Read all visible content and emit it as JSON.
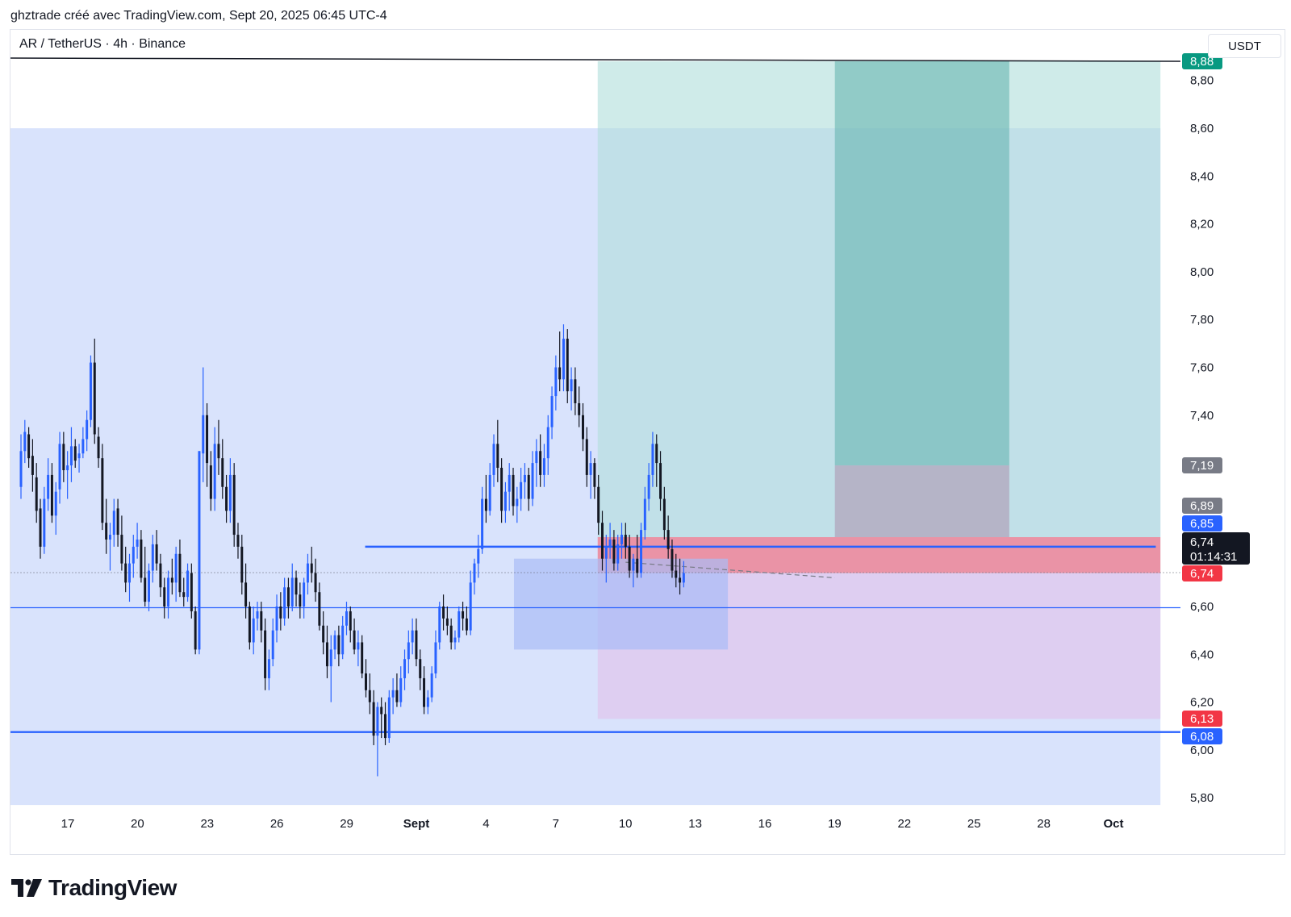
{
  "header": {
    "published_by": "ghztrade créé avec TradingView.com, Sept 20, 2025 06:45 UTC-4"
  },
  "symbol": {
    "title": "AR / TetherUS · 4h · Binance",
    "currency": "USDT"
  },
  "brand": {
    "name": "TradingView"
  },
  "colors": {
    "up": "#2962ff",
    "down": "#131722",
    "long_target_zone": "#b2dfdb",
    "zone_blue": "#d2defc",
    "stop_zone": "#f7525f",
    "pink_zone": "#e1bee7",
    "level_line": "#2962ff"
  },
  "chart_data": {
    "type": "candlestick",
    "timeframe": "4h",
    "x_axis": {
      "ticks": [
        "17",
        "20",
        "23",
        "26",
        "29",
        "Sept",
        "4",
        "7",
        "10",
        "13",
        "16",
        "19",
        "22",
        "25",
        "28",
        "Oct"
      ]
    },
    "y_axis": {
      "ticks": [
        "8,80",
        "8,60",
        "8,40",
        "8,20",
        "8,00",
        "7,80",
        "7,60",
        "7,40",
        "6,60",
        "6,40",
        "6,20",
        "6,00",
        "5,80"
      ],
      "range": [
        5.76,
        8.9
      ]
    },
    "price_labels": [
      {
        "text": "8,88",
        "value": 8.88,
        "color": "#089981"
      },
      {
        "text": "7,19",
        "value": 7.19,
        "color": "#787b86"
      },
      {
        "text": "6,89",
        "value": 6.89,
        "color": "#787b86"
      },
      {
        "text": "6,85",
        "value": 6.85,
        "color": "#2962ff"
      },
      {
        "text": "6,74",
        "value": 6.74,
        "color": "#f23645"
      },
      {
        "text": "6,13",
        "value": 6.13,
        "color": "#f23645"
      },
      {
        "text": "6,08",
        "value": 6.08,
        "color": "#2962ff"
      }
    ],
    "last_price": {
      "text": "6,74",
      "countdown": "01:14:31",
      "value": 6.74
    },
    "horizontal_lines": [
      {
        "value": 6.595,
        "thickness": "thin"
      },
      {
        "value": 6.075,
        "thickness": "thick"
      },
      {
        "value": 6.85,
        "thickness": "thick",
        "from_day": 28.8,
        "to_day": 62.8
      }
    ],
    "trend_line": {
      "from": [
        14.0,
        8.89
      ],
      "to": [
        63.0,
        8.88
      ]
    },
    "dashed_line": {
      "from": [
        40.0,
        6.785
      ],
      "to": [
        49.0,
        6.72
      ]
    },
    "zones": [
      {
        "name": "big-blue-zone",
        "from_day": 14.0,
        "to_day": 63.0,
        "low": 5.77,
        "high": 8.6,
        "color": "#d2defc"
      },
      {
        "name": "tp-zone",
        "from_day": 38.8,
        "to_day": 63.0,
        "low": 6.89,
        "high": 8.88,
        "color": "#b2dfdb"
      },
      {
        "name": "tp-zone-dark",
        "from_day": 49.0,
        "to_day": 56.5,
        "low": 7.19,
        "high": 8.88,
        "color": "#5fb1ab"
      },
      {
        "name": "stop-zone",
        "from_day": 38.8,
        "to_day": 63.0,
        "low": 6.74,
        "high": 6.89,
        "color": "#f7525f"
      },
      {
        "name": "pink-zone",
        "from_day": 38.8,
        "to_day": 63.0,
        "low": 6.13,
        "high": 6.74,
        "color": "#e1bee7"
      },
      {
        "name": "gray-zone",
        "from_day": 49.0,
        "to_day": 56.5,
        "low": 6.89,
        "high": 7.19,
        "color": "#b0a6bc"
      },
      {
        "name": "order-block",
        "from_day": 35.2,
        "to_day": 44.4,
        "low": 6.42,
        "high": 6.8,
        "color": "#a9bcf7"
      }
    ],
    "candles_start_day": 14.0,
    "candles_per_day": 6,
    "candles": [
      [
        7.1,
        7.32,
        7.05,
        7.25
      ],
      [
        7.25,
        7.38,
        7.2,
        7.33
      ],
      [
        7.32,
        7.35,
        7.18,
        7.22
      ],
      [
        7.23,
        7.3,
        7.08,
        7.15
      ],
      [
        7.14,
        7.2,
        6.95,
        7.0
      ],
      [
        7.01,
        7.05,
        6.8,
        6.85
      ],
      [
        6.85,
        7.1,
        6.82,
        7.05
      ],
      [
        7.05,
        7.22,
        7.0,
        7.15
      ],
      [
        7.15,
        7.2,
        6.95,
        6.98
      ],
      [
        6.98,
        7.12,
        6.9,
        7.08
      ],
      [
        7.09,
        7.33,
        7.03,
        7.28
      ],
      [
        7.28,
        7.33,
        7.12,
        7.17
      ],
      [
        7.17,
        7.25,
        7.05,
        7.19
      ],
      [
        7.19,
        7.35,
        7.12,
        7.27
      ],
      [
        7.27,
        7.3,
        7.18,
        7.21
      ],
      [
        7.22,
        7.28,
        7.16,
        7.24
      ],
      [
        7.24,
        7.35,
        7.22,
        7.3
      ],
      [
        7.3,
        7.42,
        7.25,
        7.38
      ],
      [
        7.38,
        7.65,
        7.35,
        7.62
      ],
      [
        7.62,
        7.72,
        7.28,
        7.32
      ],
      [
        7.31,
        7.35,
        7.18,
        7.22
      ],
      [
        7.22,
        7.28,
        6.92,
        6.95
      ],
      [
        6.95,
        7.05,
        6.82,
        6.88
      ],
      [
        6.88,
        6.95,
        6.75,
        6.9
      ],
      [
        6.9,
        7.05,
        6.85,
        7.0
      ],
      [
        7.01,
        7.05,
        6.85,
        6.9
      ],
      [
        6.9,
        6.98,
        6.75,
        6.78
      ],
      [
        6.78,
        6.85,
        6.66,
        6.7
      ],
      [
        6.7,
        6.82,
        6.62,
        6.78
      ],
      [
        6.78,
        6.9,
        6.72,
        6.85
      ],
      [
        6.85,
        6.95,
        6.8,
        6.88
      ],
      [
        6.88,
        6.92,
        6.7,
        6.72
      ],
      [
        6.72,
        6.85,
        6.6,
        6.62
      ],
      [
        6.62,
        6.78,
        6.58,
        6.75
      ],
      [
        6.75,
        6.9,
        6.7,
        6.86
      ],
      [
        6.86,
        6.92,
        6.75,
        6.78
      ],
      [
        6.78,
        6.82,
        6.64,
        6.68
      ],
      [
        6.68,
        6.72,
        6.55,
        6.6
      ],
      [
        6.6,
        6.75,
        6.55,
        6.72
      ],
      [
        6.72,
        6.8,
        6.65,
        6.7
      ],
      [
        6.7,
        6.85,
        6.62,
        6.82
      ],
      [
        6.82,
        6.88,
        6.64,
        6.66
      ],
      [
        6.66,
        6.72,
        6.6,
        6.64
      ],
      [
        6.64,
        6.78,
        6.62,
        6.75
      ],
      [
        6.74,
        6.78,
        6.55,
        6.58
      ],
      [
        6.58,
        6.6,
        6.4,
        6.42
      ],
      [
        6.42,
        7.25,
        6.4,
        7.25
      ],
      [
        7.24,
        7.6,
        7.12,
        7.4
      ],
      [
        7.4,
        7.45,
        7.1,
        7.2
      ],
      [
        7.19,
        7.25,
        7.0,
        7.05
      ],
      [
        7.05,
        7.35,
        7.0,
        7.28
      ],
      [
        7.28,
        7.38,
        7.15,
        7.22
      ],
      [
        7.22,
        7.3,
        7.05,
        7.1
      ],
      [
        7.1,
        7.15,
        6.95,
        7.0
      ],
      [
        7.0,
        7.22,
        6.95,
        7.15
      ],
      [
        7.15,
        7.2,
        6.85,
        6.9
      ],
      [
        6.9,
        6.95,
        6.8,
        6.85
      ],
      [
        6.85,
        6.9,
        6.65,
        6.7
      ],
      [
        6.7,
        6.78,
        6.55,
        6.6
      ],
      [
        6.6,
        6.62,
        6.42,
        6.45
      ],
      [
        6.45,
        6.6,
        6.4,
        6.55
      ],
      [
        6.55,
        6.62,
        6.5,
        6.58
      ],
      [
        6.58,
        6.62,
        6.45,
        6.5
      ],
      [
        6.5,
        6.55,
        6.25,
        6.3
      ],
      [
        6.3,
        6.42,
        6.25,
        6.38
      ],
      [
        6.38,
        6.55,
        6.35,
        6.5
      ],
      [
        6.5,
        6.65,
        6.45,
        6.6
      ],
      [
        6.6,
        6.66,
        6.5,
        6.55
      ],
      [
        6.55,
        6.72,
        6.52,
        6.68
      ],
      [
        6.68,
        6.72,
        6.55,
        6.6
      ],
      [
        6.6,
        6.78,
        6.58,
        6.72
      ],
      [
        6.72,
        6.75,
        6.6,
        6.65
      ],
      [
        6.65,
        6.7,
        6.55,
        6.6
      ],
      [
        6.6,
        6.72,
        6.55,
        6.7
      ],
      [
        6.7,
        6.82,
        6.65,
        6.78
      ],
      [
        6.78,
        6.85,
        6.7,
        6.74
      ],
      [
        6.74,
        6.8,
        6.62,
        6.66
      ],
      [
        6.66,
        6.7,
        6.5,
        6.52
      ],
      [
        6.52,
        6.58,
        6.4,
        6.45
      ],
      [
        6.45,
        6.52,
        6.3,
        6.35
      ],
      [
        6.35,
        6.48,
        6.2,
        6.42
      ],
      [
        6.42,
        6.5,
        6.38,
        6.48
      ],
      [
        6.48,
        6.52,
        6.35,
        6.4
      ],
      [
        6.4,
        6.56,
        6.38,
        6.52
      ],
      [
        6.52,
        6.62,
        6.48,
        6.58
      ],
      [
        6.58,
        6.6,
        6.45,
        6.5
      ],
      [
        6.5,
        6.55,
        6.4,
        6.42
      ],
      [
        6.42,
        6.5,
        6.35,
        6.45
      ],
      [
        6.45,
        6.48,
        6.3,
        6.32
      ],
      [
        6.32,
        6.38,
        6.22,
        6.25
      ],
      [
        6.25,
        6.32,
        6.15,
        6.2
      ],
      [
        6.2,
        6.25,
        6.02,
        6.06
      ],
      [
        6.06,
        6.2,
        5.89,
        6.18
      ],
      [
        6.18,
        6.22,
        6.05,
        6.15
      ],
      [
        6.15,
        6.2,
        6.02,
        6.05
      ],
      [
        6.05,
        6.25,
        6.03,
        6.22
      ],
      [
        6.22,
        6.3,
        6.15,
        6.25
      ],
      [
        6.25,
        6.32,
        6.18,
        6.2
      ],
      [
        6.2,
        6.35,
        6.18,
        6.3
      ],
      [
        6.3,
        6.42,
        6.25,
        6.38
      ],
      [
        6.38,
        6.5,
        6.32,
        6.45
      ],
      [
        6.45,
        6.55,
        6.4,
        6.5
      ],
      [
        6.5,
        6.55,
        6.35,
        6.38
      ],
      [
        6.38,
        6.42,
        6.25,
        6.3
      ],
      [
        6.3,
        6.35,
        6.15,
        6.18
      ],
      [
        6.18,
        6.25,
        6.15,
        6.22
      ],
      [
        6.22,
        6.35,
        6.2,
        6.32
      ],
      [
        6.32,
        6.5,
        6.3,
        6.45
      ],
      [
        6.45,
        6.62,
        6.42,
        6.6
      ],
      [
        6.6,
        6.65,
        6.5,
        6.55
      ],
      [
        6.55,
        6.6,
        6.48,
        6.52
      ],
      [
        6.52,
        6.55,
        6.42,
        6.45
      ],
      [
        6.45,
        6.5,
        6.42,
        6.47
      ],
      [
        6.47,
        6.6,
        6.45,
        6.58
      ],
      [
        6.58,
        6.62,
        6.5,
        6.55
      ],
      [
        6.55,
        6.6,
        6.48,
        6.5
      ],
      [
        6.5,
        6.75,
        6.48,
        6.7
      ],
      [
        6.7,
        6.8,
        6.65,
        6.78
      ],
      [
        6.78,
        6.9,
        6.72,
        6.84
      ],
      [
        6.84,
        7.1,
        6.82,
        7.05
      ],
      [
        7.05,
        7.15,
        6.95,
        7.0
      ],
      [
        7.0,
        7.2,
        6.98,
        7.15
      ],
      [
        7.15,
        7.32,
        7.1,
        7.28
      ],
      [
        7.28,
        7.38,
        7.12,
        7.18
      ],
      [
        7.18,
        7.22,
        6.95,
        7.0
      ],
      [
        7.0,
        7.12,
        6.95,
        7.08
      ],
      [
        7.08,
        7.2,
        7.0,
        7.15
      ],
      [
        7.15,
        7.18,
        6.98,
        7.02
      ],
      [
        7.02,
        7.1,
        6.95,
        7.05
      ],
      [
        7.05,
        7.18,
        7.0,
        7.12
      ],
      [
        7.12,
        7.2,
        7.05,
        7.15
      ],
      [
        7.15,
        7.18,
        7.0,
        7.05
      ],
      [
        7.05,
        7.25,
        7.02,
        7.2
      ],
      [
        7.2,
        7.3,
        7.1,
        7.25
      ],
      [
        7.25,
        7.32,
        7.1,
        7.15
      ],
      [
        7.15,
        7.28,
        7.1,
        7.22
      ],
      [
        7.22,
        7.4,
        7.15,
        7.35
      ],
      [
        7.35,
        7.52,
        7.3,
        7.48
      ],
      [
        7.48,
        7.65,
        7.42,
        7.6
      ],
      [
        7.6,
        7.75,
        7.5,
        7.55
      ],
      [
        7.55,
        7.78,
        7.5,
        7.72
      ],
      [
        7.72,
        7.76,
        7.45,
        7.5
      ],
      [
        7.5,
        7.6,
        7.42,
        7.55
      ],
      [
        7.55,
        7.6,
        7.4,
        7.45
      ],
      [
        7.45,
        7.52,
        7.35,
        7.4
      ],
      [
        7.4,
        7.45,
        7.25,
        7.3
      ],
      [
        7.3,
        7.35,
        7.1,
        7.15
      ],
      [
        7.15,
        7.25,
        7.05,
        7.2
      ],
      [
        7.2,
        7.22,
        7.05,
        7.1
      ],
      [
        7.1,
        7.15,
        6.9,
        6.95
      ],
      [
        6.95,
        7.0,
        6.75,
        6.8
      ],
      [
        6.8,
        6.9,
        6.7,
        6.85
      ],
      [
        6.85,
        6.95,
        6.8,
        6.88
      ],
      [
        6.88,
        6.92,
        6.75,
        6.78
      ],
      [
        6.78,
        6.9,
        6.75,
        6.86
      ],
      [
        6.86,
        6.95,
        6.8,
        6.9
      ],
      [
        6.9,
        6.95,
        6.8,
        6.85
      ],
      [
        6.85,
        6.9,
        6.72,
        6.75
      ],
      [
        6.75,
        6.82,
        6.68,
        6.8
      ],
      [
        6.8,
        6.9,
        6.72,
        6.74
      ],
      [
        6.74,
        6.95,
        6.72,
        6.92
      ],
      [
        6.92,
        7.1,
        6.88,
        7.05
      ],
      [
        7.05,
        7.2,
        7.0,
        7.15
      ],
      [
        7.15,
        7.33,
        7.1,
        7.28
      ],
      [
        7.28,
        7.32,
        7.1,
        7.2
      ],
      [
        7.2,
        7.25,
        7.0,
        7.05
      ],
      [
        7.05,
        7.1,
        6.88,
        6.92
      ],
      [
        6.92,
        6.98,
        6.8,
        6.84
      ],
      [
        6.84,
        6.88,
        6.72,
        6.75
      ],
      [
        6.75,
        6.82,
        6.68,
        6.72
      ],
      [
        6.72,
        6.8,
        6.65,
        6.7
      ],
      [
        6.7,
        6.79,
        6.68,
        6.74
      ]
    ]
  }
}
